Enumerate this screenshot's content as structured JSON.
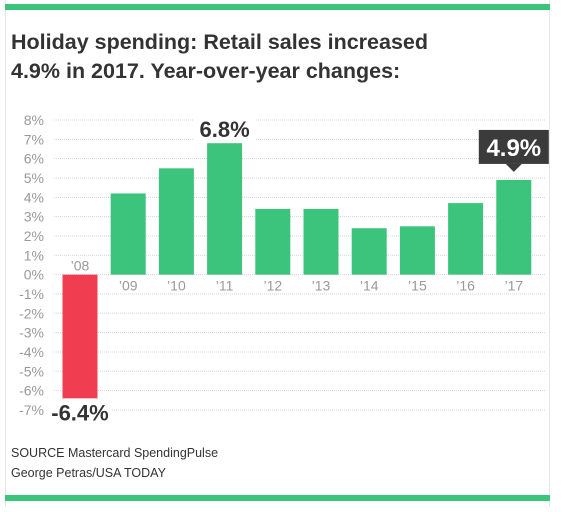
{
  "colors": {
    "accent": "#3cc47c",
    "positive_bar": "#3cc47c",
    "negative_bar": "#f13d50",
    "grid": "#d5d5d5",
    "tick": "#999999",
    "text": "#333333",
    "callout_bg": "#3b3b3b",
    "callout_text": "#ffffff"
  },
  "title_lines": [
    "Holiday spending: Retail sales increased",
    "4.9% in 2017. Year-over-year changes:"
  ],
  "chart_data": {
    "type": "bar",
    "title": "Holiday spending: Retail sales increased 4.9% in 2017. Year-over-year changes:",
    "categories": [
      "’08",
      "’09",
      "’10",
      "’11",
      "’12",
      "’13",
      "’14",
      "’15",
      "’16",
      "’17"
    ],
    "values": [
      -6.4,
      4.2,
      5.5,
      6.8,
      3.4,
      3.4,
      2.4,
      2.5,
      3.7,
      4.9
    ],
    "ylim": [
      -7,
      8
    ],
    "yticks": [
      "8%",
      "7%",
      "6%",
      "5%",
      "4%",
      "3%",
      "2%",
      "1%",
      "0%",
      "-1%",
      "-2%",
      "-3%",
      "-4%",
      "-5%",
      "-6%",
      "-7%"
    ],
    "grid": true,
    "annotations": [
      {
        "category": "’08",
        "text": "-6.4%",
        "style": "plain"
      },
      {
        "category": "’11",
        "text": "6.8%",
        "style": "plain"
      },
      {
        "category": "’17",
        "text": "4.9%",
        "style": "callout"
      }
    ]
  },
  "source": {
    "line1": "SOURCE Mastercard SpendingPulse",
    "line2": "George Petras/USA TODAY"
  }
}
